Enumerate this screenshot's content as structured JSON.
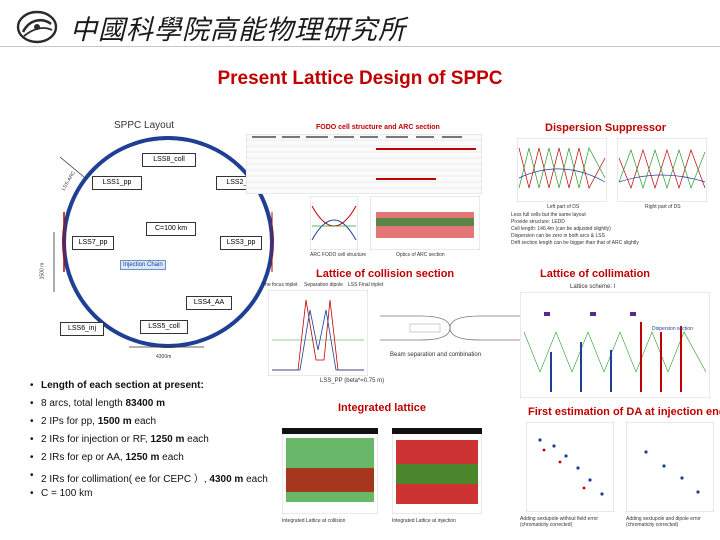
{
  "header": {
    "institute_cn": "中國科學院高能物理研究所"
  },
  "title": "Present Lattice Design of SPPC",
  "layout_panel": {
    "title": "SPPC Layout",
    "sections": [
      "LSS8_coll",
      "LSS1_pp",
      "LSS2_rf",
      "C=100 km",
      "LSS7_pp",
      "LSS3_pp",
      "Injection Chain",
      "LSS4_AA",
      "LSS6_inj",
      "LSS5_coll"
    ],
    "side_label_top": "LSS-ARC",
    "side_label_left": "1500 m",
    "bottom_label": "4300m"
  },
  "fodo_panel": {
    "title": "FODO cell structure and ARC section",
    "caption1": "ARC FODO cell structure",
    "caption2": "Optics of ARC section"
  },
  "dispersion_panel": {
    "title": "Dispersion Suppressor",
    "notes": [
      "Left part of DS",
      "Right part of DS",
      "Less full cells but the same layout",
      "Provide structure: LEDD",
      "Cell length: 146.4m (can be adjusted slightly)",
      "Dispersion can be zero in both arcs & LSS",
      "Drift section length can be bigger than that of ARC slightly"
    ]
  },
  "collision_panel": {
    "title": "Lattice of collision section",
    "labels": [
      "The focus triplet",
      "Separation dipole",
      "LSS Final triplet"
    ],
    "caption": "Beam separation and combination",
    "footer": "LSS_PP (beta*=0.75 m)"
  },
  "collimation_panel": {
    "title": "Lattice of collimation",
    "subtitle": "Lattice scheme: I",
    "tag": "Dispersion section"
  },
  "integrated_panel": {
    "title": "Integrated lattice",
    "cap_left": "Integrated Lattice at collision",
    "cap_right": "Integrated Lattice at injection"
  },
  "da_panel": {
    "title": "First estimation of DA at injection energy",
    "cap_left": "Adding sextupole without field error (chromaticity corrected)",
    "cap_right": "Adding sextupole and dipole error (chromaticity corrected)"
  },
  "bullets": [
    {
      "text": "Length of each section at present:",
      "bold": ""
    },
    {
      "text": "8 arcs, total length ",
      "bold": "83400 m",
      "tail": ""
    },
    {
      "text": "2 IPs for pp, ",
      "bold": "1500 m",
      "tail": " each"
    },
    {
      "text": "2 IRs for injection or RF, ",
      "bold": "1250 m",
      "tail": " each"
    },
    {
      "text": "2 IRs for ep or AA, ",
      "bold": "1250 m",
      "tail": " each"
    },
    {
      "text": "2 IRs for collimation( ee for CEPC ）, ",
      "bold": "4300 m",
      "tail": " each"
    },
    {
      "text": "C = 100 km",
      "bold": "",
      "tail": ""
    }
  ],
  "colors": {
    "accent_red": "#c00000",
    "bullet_text": "#111111"
  }
}
